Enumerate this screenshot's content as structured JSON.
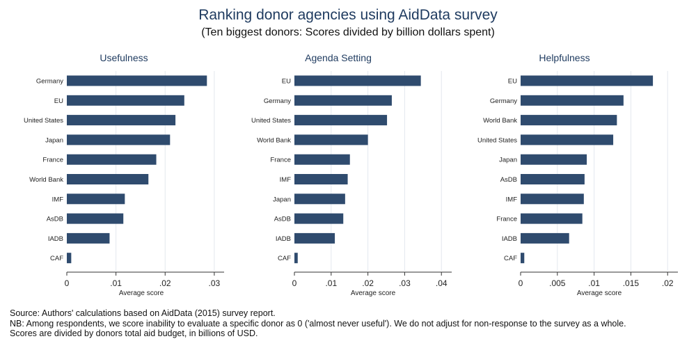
{
  "title": "Ranking donor agencies using AidData survey",
  "subtitle": "(Ten biggest donors: Scores divided by billion dollars spent)",
  "colors": {
    "bar": "#2f4b6e",
    "axis": "#333333",
    "grid": "#e3e8ee",
    "panel_bg": "#ffffff"
  },
  "chart_data": [
    {
      "type": "bar",
      "orientation": "horizontal",
      "title": "Usefulness",
      "xlabel": "Average score",
      "categories": [
        "Germany",
        "EU",
        "United States",
        "Japan",
        "France",
        "World Bank",
        "IMF",
        "AsDB",
        "IADB",
        "CAF"
      ],
      "values": [
        0.0285,
        0.0239,
        0.0221,
        0.021,
        0.0182,
        0.0166,
        0.0118,
        0.0115,
        0.0087,
        0.0009
      ],
      "xlim": [
        0,
        0.032
      ],
      "ticks": [
        0,
        0.01,
        0.02,
        0.03
      ],
      "tick_labels": [
        "0",
        ".01",
        ".02",
        ".03"
      ],
      "grid": true
    },
    {
      "type": "bar",
      "orientation": "horizontal",
      "title": "Agenda Setting",
      "xlabel": "Average score",
      "categories": [
        "EU",
        "Germany",
        "United States",
        "World Bank",
        "France",
        "IMF",
        "Japan",
        "AsDB",
        "IADB",
        "CAF"
      ],
      "values": [
        0.0344,
        0.0265,
        0.0252,
        0.02,
        0.0151,
        0.0145,
        0.0138,
        0.0133,
        0.011,
        0.0009
      ],
      "xlim": [
        0,
        0.0428
      ],
      "ticks": [
        0,
        0.01,
        0.02,
        0.03,
        0.04
      ],
      "tick_labels": [
        "0",
        ".01",
        ".02",
        ".03",
        ".04"
      ],
      "grid": true
    },
    {
      "type": "bar",
      "orientation": "horizontal",
      "title": "Helpfulness",
      "xlabel": "Average score",
      "categories": [
        "EU",
        "Germany",
        "World Bank",
        "United States",
        "Japan",
        "AsDB",
        "IMF",
        "France",
        "IADB",
        "CAF"
      ],
      "values": [
        0.018,
        0.014,
        0.0131,
        0.0126,
        0.009,
        0.0087,
        0.0086,
        0.0084,
        0.0066,
        0.0005
      ],
      "xlim": [
        0,
        0.0214
      ],
      "ticks": [
        0,
        0.005,
        0.01,
        0.015,
        0.02
      ],
      "tick_labels": [
        "0",
        ".005",
        ".01",
        ".015",
        ".02"
      ],
      "grid": true
    }
  ],
  "notes": {
    "source": "Source: Authors' calculations based on AidData (2015) survey report.",
    "nb": "NB: Among respondents, we score inability to evaluate a specific donor as 0 ('almost never useful').  We do not adjust for non-response to the survey as a whole.",
    "scaling": "Scores are divided by donors total aid budget, in billions of USD."
  }
}
